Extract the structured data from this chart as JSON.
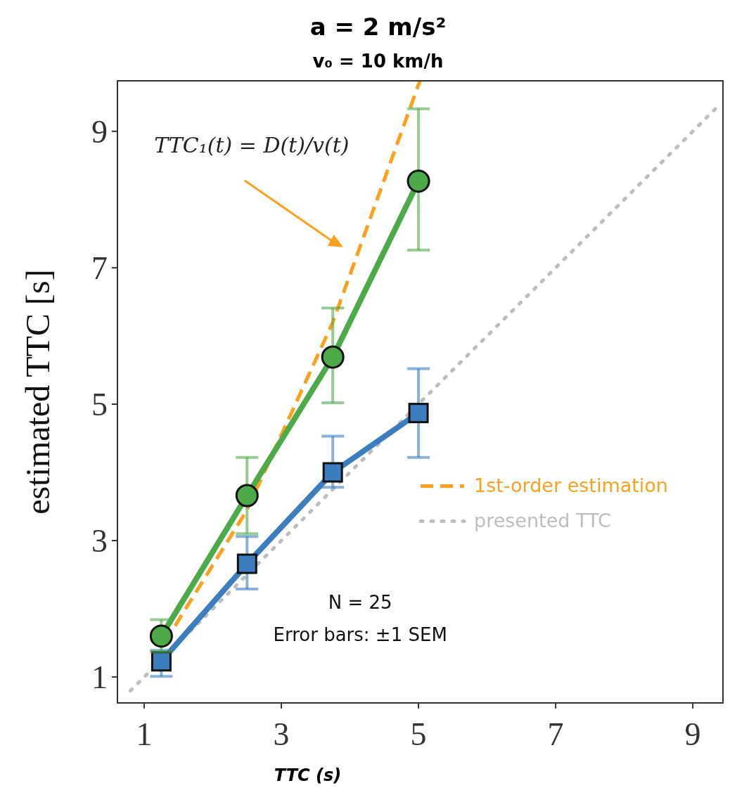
{
  "chart_data": {
    "type": "line",
    "title": "a = 2 m/s²",
    "subtitle": "v₀ = 10 km/h",
    "xlabel": "TTC (s)",
    "ylabel": "estimated TTC [s]",
    "xlim": [
      0.61,
      9.44
    ],
    "ylim": [
      0.62,
      9.74
    ],
    "xticks": [
      1,
      3,
      5,
      7,
      9
    ],
    "yticks": [
      1,
      3,
      5,
      7,
      9
    ],
    "grid": false,
    "legend": "right",
    "series": [
      {
        "name": "1st-order estimation",
        "color": "#ffa01c",
        "x": [
          1.45,
          2.5,
          3.75,
          5.02
        ],
        "values": [
          1.75,
          3.45,
          6.2,
          9.74
        ],
        "line_style": "dashed",
        "marker": "none"
      },
      {
        "name": "presented TTC",
        "color": "#bdbdbd",
        "x": [
          0.8,
          9.4
        ],
        "values": [
          0.8,
          9.4
        ],
        "line_style": "dotted",
        "marker": "none"
      },
      {
        "color": "#3b7dbf",
        "x": [
          1.25,
          2.5,
          3.75,
          5
        ],
        "values": [
          1.23,
          2.66,
          4.0,
          4.87
        ],
        "errors": [
          [
            1.01,
            1.39
          ],
          [
            2.29,
            3.06
          ],
          [
            3.78,
            4.53
          ],
          [
            4.22,
            5.52
          ]
        ],
        "line_style": "solid",
        "marker": "square"
      },
      {
        "color": "#4caa48",
        "x": [
          1.25,
          2.5,
          3.75,
          5
        ],
        "values": [
          1.6,
          3.66,
          5.69,
          8.27
        ],
        "errors": [
          [
            1.37,
            1.84
          ],
          [
            3.1,
            4.22
          ],
          [
            5.02,
            6.41
          ],
          [
            7.26,
            9.33
          ]
        ],
        "line_style": "solid",
        "marker": "circle"
      }
    ],
    "annotations": [
      "TTC₁(t) = D(t)/v(t)",
      "N = 25",
      "Error bars: ±1 SEM"
    ]
  }
}
